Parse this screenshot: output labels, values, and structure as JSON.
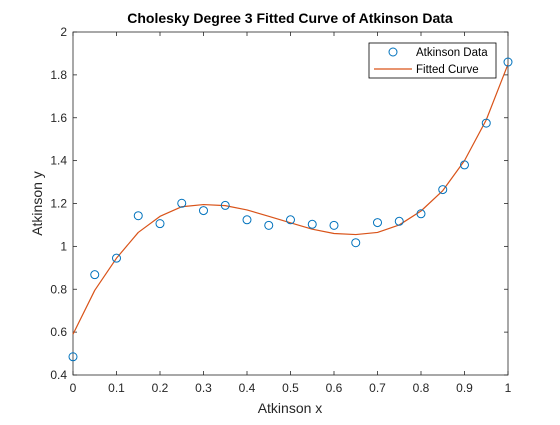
{
  "chart_data": {
    "type": "scatter",
    "title": "Cholesky Degree 3 Fitted Curve of Atkinson Data",
    "xlabel": "Atkinson x",
    "ylabel": "Atkinson y",
    "xlim": [
      0,
      1
    ],
    "ylim": [
      0.4,
      2
    ],
    "xticks": [
      "0",
      "0.1",
      "0.2",
      "0.3",
      "0.4",
      "0.5",
      "0.6",
      "0.7",
      "0.8",
      "0.9",
      "1"
    ],
    "yticks": [
      "0.4",
      "0.6",
      "0.8",
      "1",
      "1.2",
      "1.4",
      "1.6",
      "1.8",
      "2"
    ],
    "grid": false,
    "legend": "top-right",
    "series": [
      {
        "name": "Atkinson Data",
        "style": "markers",
        "color": "#0072BD",
        "x": [
          0,
          0.05,
          0.1,
          0.15,
          0.2,
          0.25,
          0.3,
          0.35,
          0.4,
          0.45,
          0.5,
          0.55,
          0.6,
          0.65,
          0.7,
          0.75,
          0.8,
          0.85,
          0.9,
          0.95,
          1.0
        ],
        "y": [
          0.485,
          0.868,
          0.945,
          1.143,
          1.106,
          1.201,
          1.167,
          1.191,
          1.124,
          1.098,
          1.124,
          1.103,
          1.098,
          1.017,
          1.111,
          1.117,
          1.152,
          1.265,
          1.38,
          1.575,
          1.86
        ]
      },
      {
        "name": "Fitted Curve",
        "style": "line",
        "color": "#D95319",
        "x": [
          0,
          0.05,
          0.1,
          0.15,
          0.2,
          0.25,
          0.3,
          0.35,
          0.4,
          0.45,
          0.5,
          0.55,
          0.6,
          0.65,
          0.7,
          0.75,
          0.8,
          0.85,
          0.9,
          0.95,
          1.0
        ],
        "y": [
          0.59,
          0.795,
          0.945,
          1.065,
          1.14,
          1.185,
          1.195,
          1.19,
          1.17,
          1.14,
          1.11,
          1.08,
          1.06,
          1.055,
          1.065,
          1.1,
          1.165,
          1.26,
          1.4,
          1.59,
          1.85
        ]
      }
    ]
  }
}
